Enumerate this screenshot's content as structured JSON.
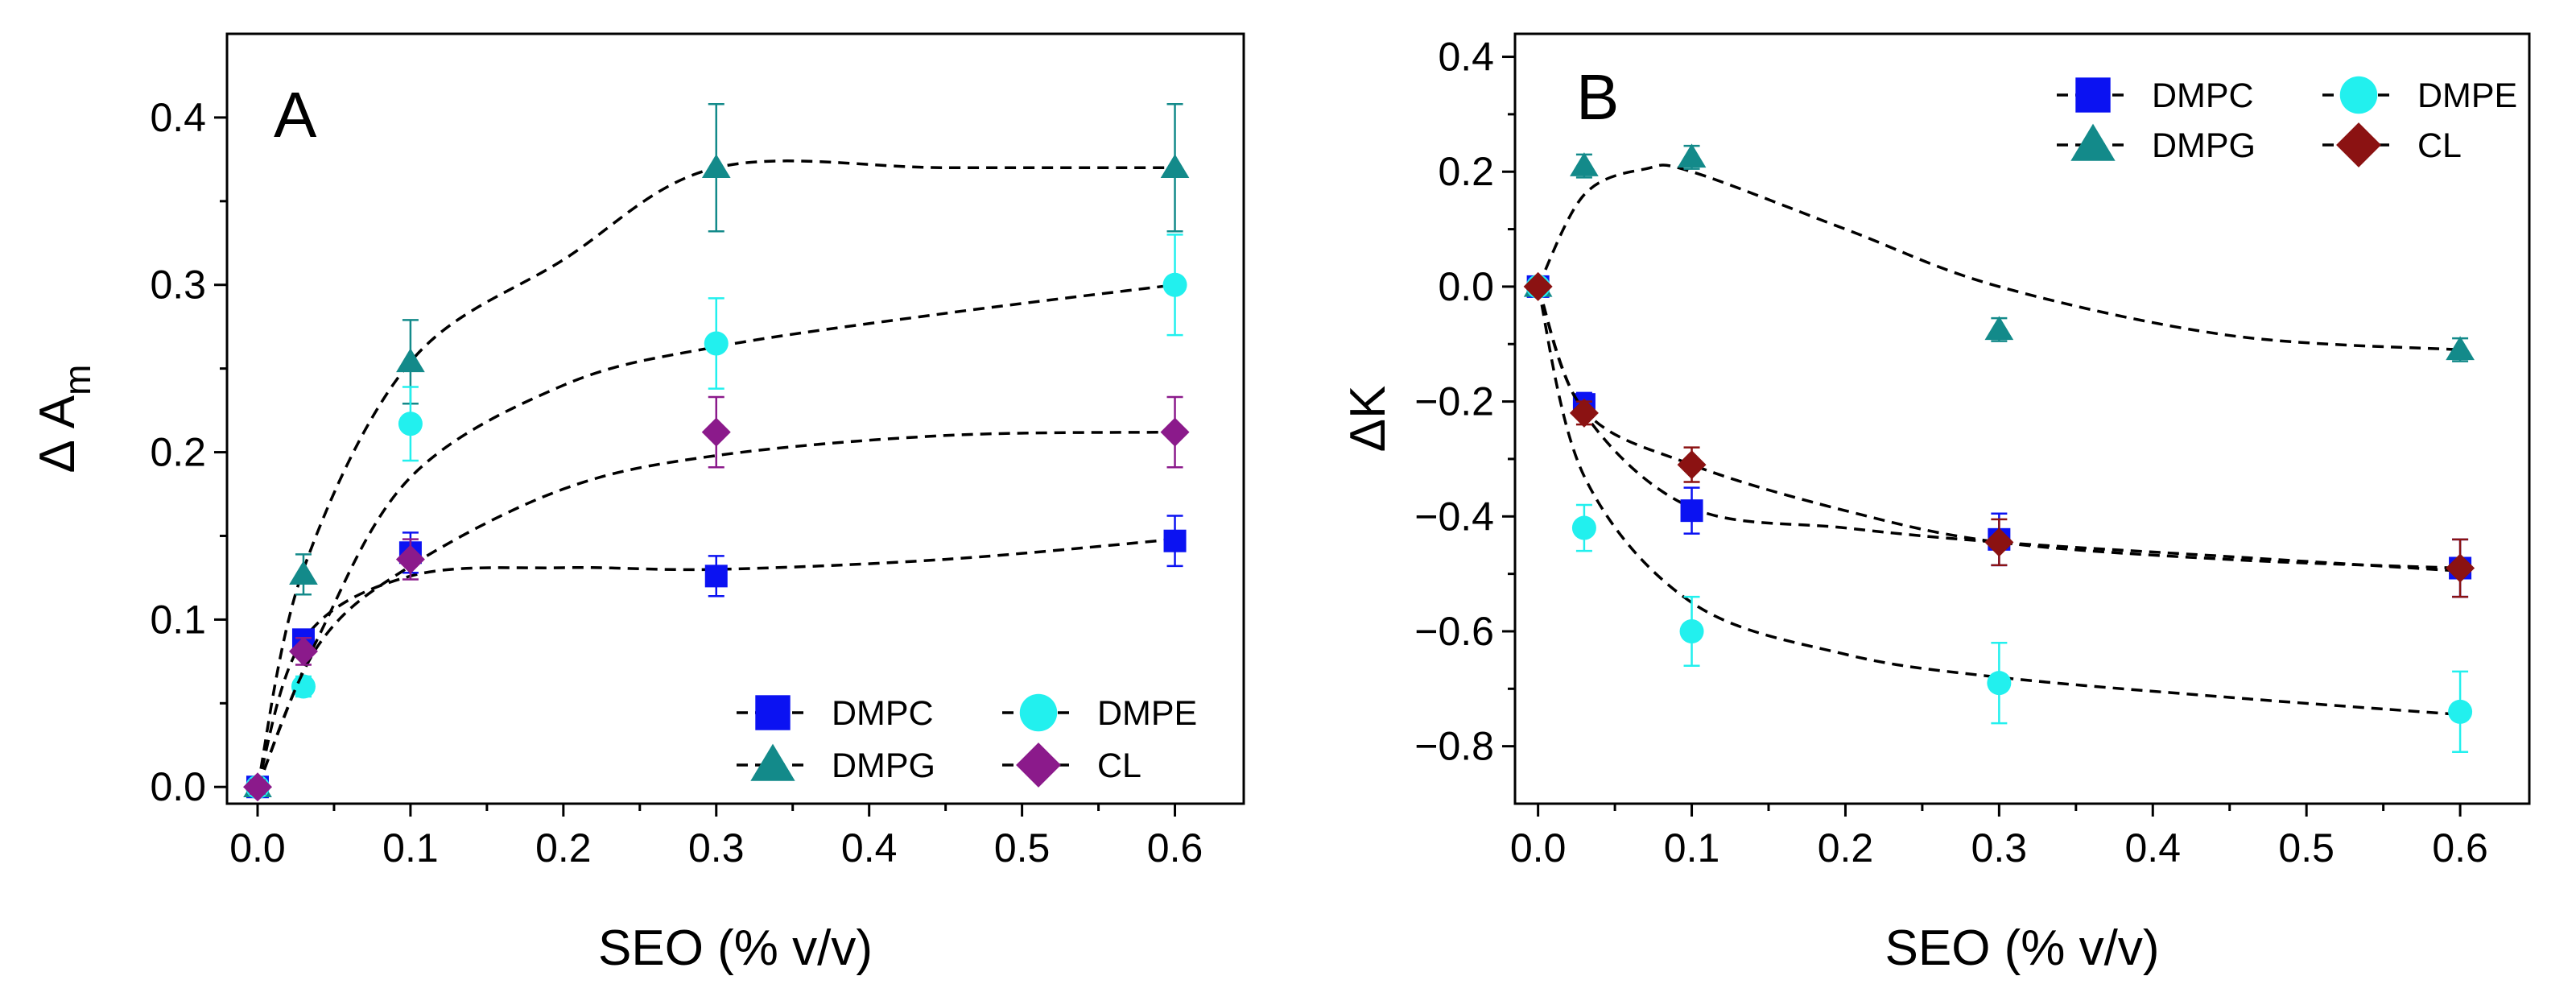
{
  "figure": {
    "legend_names": [
      "DMPC",
      "DMPG",
      "DMPE",
      "CL"
    ]
  },
  "series_style": {
    "DMPC": {
      "marker": "square-icon",
      "color": "#0b12f2"
    },
    "DMPG": {
      "marker": "triangle-icon",
      "color": "#138a8a"
    },
    "DMPE": {
      "marker": "circle-icon",
      "color": "#22f0ee"
    },
    "CL": {
      "marker": "diamond-icon",
      "color": "#8b1a8b",
      "color_alt": "#8b1212"
    }
  },
  "chart_data": [
    {
      "type": "scatter",
      "panel": "A",
      "title": "",
      "xlabel": "SEO (% v/v)",
      "ylabel": "Δ A",
      "ylabel_subscript": "m",
      "xlim": [
        -0.02,
        0.645
      ],
      "ylim": [
        -0.01,
        0.45
      ],
      "x_ticks": [
        0.0,
        0.1,
        0.2,
        0.3,
        0.4,
        0.5,
        0.6
      ],
      "x_tick_labels": [
        "0.0",
        "0.1",
        "0.2",
        "0.3",
        "0.4",
        "0.5",
        "0.6"
      ],
      "y_ticks": [
        0.0,
        0.1,
        0.2,
        0.3,
        0.4
      ],
      "y_tick_labels": [
        "0.0",
        "0.1",
        "0.2",
        "0.3",
        "0.4"
      ],
      "grid": false,
      "legend_position": "bottom-right",
      "series": [
        {
          "name": "DMPC",
          "x": [
            0,
            0.03,
            0.1,
            0.3,
            0.6
          ],
          "y": [
            0.0,
            0.088,
            0.14,
            0.126,
            0.147
          ],
          "err": [
            0.004,
            0.006,
            0.012,
            0.012,
            0.015
          ],
          "fit": [
            [
              0,
              0
            ],
            [
              0.03,
              0.088
            ],
            [
              0.1,
              0.126
            ],
            [
              0.2,
              0.131
            ],
            [
              0.3,
              0.13
            ],
            [
              0.45,
              0.136
            ],
            [
              0.6,
              0.148
            ]
          ]
        },
        {
          "name": "DMPG",
          "x": [
            0,
            0.03,
            0.1,
            0.3,
            0.6
          ],
          "y": [
            0.0,
            0.127,
            0.254,
            0.37,
            0.37
          ],
          "err": [
            0.004,
            0.012,
            0.025,
            0.038,
            0.038
          ],
          "fit": [
            [
              0,
              0
            ],
            [
              0.03,
              0.13
            ],
            [
              0.1,
              0.254
            ],
            [
              0.2,
              0.315
            ],
            [
              0.3,
              0.37
            ],
            [
              0.45,
              0.37
            ],
            [
              0.6,
              0.37
            ]
          ]
        },
        {
          "name": "DMPE",
          "x": [
            0,
            0.03,
            0.1,
            0.3,
            0.6
          ],
          "y": [
            0.0,
            0.06,
            0.217,
            0.265,
            0.3
          ],
          "err": [
            0.004,
            0.006,
            0.022,
            0.027,
            0.03
          ],
          "fit": [
            [
              0,
              0
            ],
            [
              0.04,
              0.09
            ],
            [
              0.1,
              0.185
            ],
            [
              0.2,
              0.24
            ],
            [
              0.3,
              0.263
            ],
            [
              0.45,
              0.283
            ],
            [
              0.6,
              0.3
            ]
          ]
        },
        {
          "name": "CL",
          "x": [
            0,
            0.03,
            0.1,
            0.3,
            0.6
          ],
          "y": [
            0.0,
            0.081,
            0.136,
            0.212,
            0.212
          ],
          "err": [
            0.004,
            0.008,
            0.012,
            0.021,
            0.021
          ],
          "fit": [
            [
              0,
              0
            ],
            [
              0.04,
              0.085
            ],
            [
              0.1,
              0.132
            ],
            [
              0.2,
              0.178
            ],
            [
              0.3,
              0.198
            ],
            [
              0.45,
              0.21
            ],
            [
              0.6,
              0.212
            ]
          ]
        }
      ]
    },
    {
      "type": "scatter",
      "panel": "B",
      "title": "",
      "xlabel": "SEO (% v/v)",
      "ylabel": "ΔK",
      "xlim": [
        -0.015,
        0.645
      ],
      "ylim": [
        -0.9,
        0.44
      ],
      "x_ticks": [
        0.0,
        0.1,
        0.2,
        0.3,
        0.4,
        0.5,
        0.6
      ],
      "x_tick_labels": [
        "0.0",
        "0.1",
        "0.2",
        "0.3",
        "0.4",
        "0.5",
        "0.6"
      ],
      "y_ticks": [
        -0.8,
        -0.6,
        -0.4,
        -0.2,
        0.0,
        0.2,
        0.4
      ],
      "y_tick_labels": [
        "−0.8",
        "−0.6",
        "−0.4",
        "−0.2",
        "0.0",
        "0.2",
        "0.4"
      ],
      "grid": false,
      "legend_position": "top-right",
      "series": [
        {
          "name": "DMPC",
          "x": [
            0,
            0.03,
            0.1,
            0.3,
            0.6
          ],
          "y": [
            0.0,
            -0.205,
            -0.39,
            -0.44,
            -0.49
          ],
          "err": [
            0.01,
            0.02,
            0.04,
            0.045,
            0.05
          ],
          "fit": [
            [
              0,
              0
            ],
            [
              0.03,
              -0.22
            ],
            [
              0.1,
              -0.385
            ],
            [
              0.2,
              -0.42
            ],
            [
              0.3,
              -0.445
            ],
            [
              0.45,
              -0.47
            ],
            [
              0.6,
              -0.495
            ]
          ]
        },
        {
          "name": "DMPG",
          "x": [
            0,
            0.03,
            0.1,
            0.3,
            0.6
          ],
          "y": [
            0.0,
            0.21,
            0.225,
            -0.075,
            -0.11
          ],
          "err": [
            0.01,
            0.02,
            0.02,
            0.02,
            0.02
          ],
          "fit": [
            [
              0,
              0
            ],
            [
              0.03,
              0.16
            ],
            [
              0.07,
              0.205
            ],
            [
              0.1,
              0.2
            ],
            [
              0.2,
              0.1
            ],
            [
              0.3,
              0.0
            ],
            [
              0.45,
              -0.085
            ],
            [
              0.6,
              -0.11
            ]
          ]
        },
        {
          "name": "DMPE",
          "x": [
            0,
            0.03,
            0.1,
            0.3,
            0.6
          ],
          "y": [
            0.0,
            -0.42,
            -0.6,
            -0.69,
            -0.74
          ],
          "err": [
            0.01,
            0.04,
            0.06,
            0.07,
            0.07
          ],
          "fit": [
            [
              0,
              0
            ],
            [
              0.03,
              -0.33
            ],
            [
              0.1,
              -0.55
            ],
            [
              0.2,
              -0.64
            ],
            [
              0.3,
              -0.68
            ],
            [
              0.45,
              -0.715
            ],
            [
              0.6,
              -0.745
            ]
          ]
        },
        {
          "name": "CL",
          "x": [
            0,
            0.03,
            0.1,
            0.3,
            0.6
          ],
          "y": [
            0.0,
            -0.22,
            -0.31,
            -0.445,
            -0.49
          ],
          "err": [
            0.01,
            0.02,
            0.03,
            0.04,
            0.05
          ],
          "fit": [
            [
              0,
              0
            ],
            [
              0.03,
              -0.215
            ],
            [
              0.1,
              -0.31
            ],
            [
              0.2,
              -0.39
            ],
            [
              0.3,
              -0.445
            ],
            [
              0.45,
              -0.475
            ],
            [
              0.6,
              -0.49
            ]
          ]
        }
      ]
    }
  ]
}
